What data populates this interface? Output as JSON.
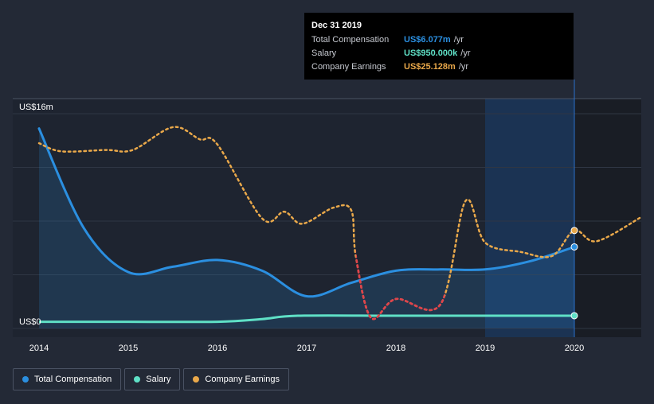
{
  "chart_data": {
    "type": "line",
    "y_axis": {
      "min": 0,
      "max": 16,
      "tick_labels": [
        {
          "value": 16,
          "label": "US$16m"
        },
        {
          "value": 0,
          "label": "US$0"
        }
      ]
    },
    "x_axis": {
      "min": 2014,
      "max": 2020.75,
      "tick_labels": [
        "2014",
        "2015",
        "2016",
        "2017",
        "2018",
        "2019",
        "2020"
      ]
    },
    "grid": true,
    "highlight_range": [
      2019,
      2020
    ],
    "series": [
      {
        "name": "Total Compensation",
        "color": "#2b8fe0",
        "style": "solid-area",
        "points": [
          [
            2014.0,
            14.9
          ],
          [
            2014.5,
            7.5
          ],
          [
            2015.0,
            4.2
          ],
          [
            2015.5,
            4.6
          ],
          [
            2016.0,
            5.1
          ],
          [
            2016.5,
            4.3
          ],
          [
            2017.0,
            2.4
          ],
          [
            2017.5,
            3.4
          ],
          [
            2018.0,
            4.3
          ],
          [
            2018.5,
            4.4
          ],
          [
            2019.0,
            4.4
          ],
          [
            2019.5,
            5.0
          ],
          [
            2020.0,
            6.077
          ]
        ]
      },
      {
        "name": "Salary",
        "color": "#5fe0c6",
        "style": "solid",
        "points": [
          [
            2014.0,
            0.5
          ],
          [
            2015.0,
            0.5
          ],
          [
            2016.0,
            0.5
          ],
          [
            2016.5,
            0.7
          ],
          [
            2016.9,
            0.95
          ],
          [
            2018.0,
            0.95
          ],
          [
            2019.0,
            0.95
          ],
          [
            2020.0,
            0.95
          ]
        ]
      },
      {
        "name": "Company Earnings",
        "color": "#e9a84a",
        "negative_color": "#e0444b",
        "style": "dotted",
        "points": [
          [
            2014.0,
            13.8
          ],
          [
            2014.25,
            13.2
          ],
          [
            2014.75,
            13.3
          ],
          [
            2015.05,
            13.3
          ],
          [
            2015.5,
            15.0
          ],
          [
            2015.8,
            14.1
          ],
          [
            2016.0,
            13.7
          ],
          [
            2016.5,
            8.2
          ],
          [
            2016.75,
            8.7
          ],
          [
            2016.95,
            7.8
          ],
          [
            2017.3,
            9.0
          ],
          [
            2017.5,
            8.8
          ],
          [
            2017.55,
            5.4
          ],
          [
            2017.72,
            0.8
          ],
          [
            2018.0,
            2.2
          ],
          [
            2018.5,
            1.8
          ],
          [
            2018.78,
            9.5
          ],
          [
            2019.0,
            6.4
          ],
          [
            2019.4,
            5.7
          ],
          [
            2019.75,
            5.4
          ],
          [
            2020.0,
            7.3
          ],
          [
            2020.25,
            6.5
          ],
          [
            2020.75,
            8.3
          ]
        ],
        "negative_x_range": [
          2017.55,
          2018.55
        ]
      }
    ],
    "hover_points": [
      {
        "series": "Total Compensation",
        "x": 2020.0,
        "y": 6.077,
        "color": "#2b8fe0"
      },
      {
        "series": "Salary",
        "x": 2020.0,
        "y": 0.95,
        "color": "#5fe0c6"
      },
      {
        "series": "Company Earnings",
        "x": 2020.0,
        "y": 7.3,
        "color": "#e9a84a"
      }
    ]
  },
  "tooltip": {
    "date": "Dec 31 2019",
    "rows": [
      {
        "name": "Total Compensation",
        "value": "US$6.077m",
        "unit": "/yr",
        "color": "#2b8fe0"
      },
      {
        "name": "Salary",
        "value": "US$950.000k",
        "unit": "/yr",
        "color": "#5fe0c6"
      },
      {
        "name": "Company Earnings",
        "value": "US$25.128m",
        "unit": "/yr",
        "color": "#e9a84a"
      }
    ]
  },
  "legend": [
    {
      "label": "Total Compensation",
      "color": "#2b8fe0"
    },
    {
      "label": "Salary",
      "color": "#5fe0c6"
    },
    {
      "label": "Company Earnings",
      "color": "#e9a84a"
    }
  ]
}
